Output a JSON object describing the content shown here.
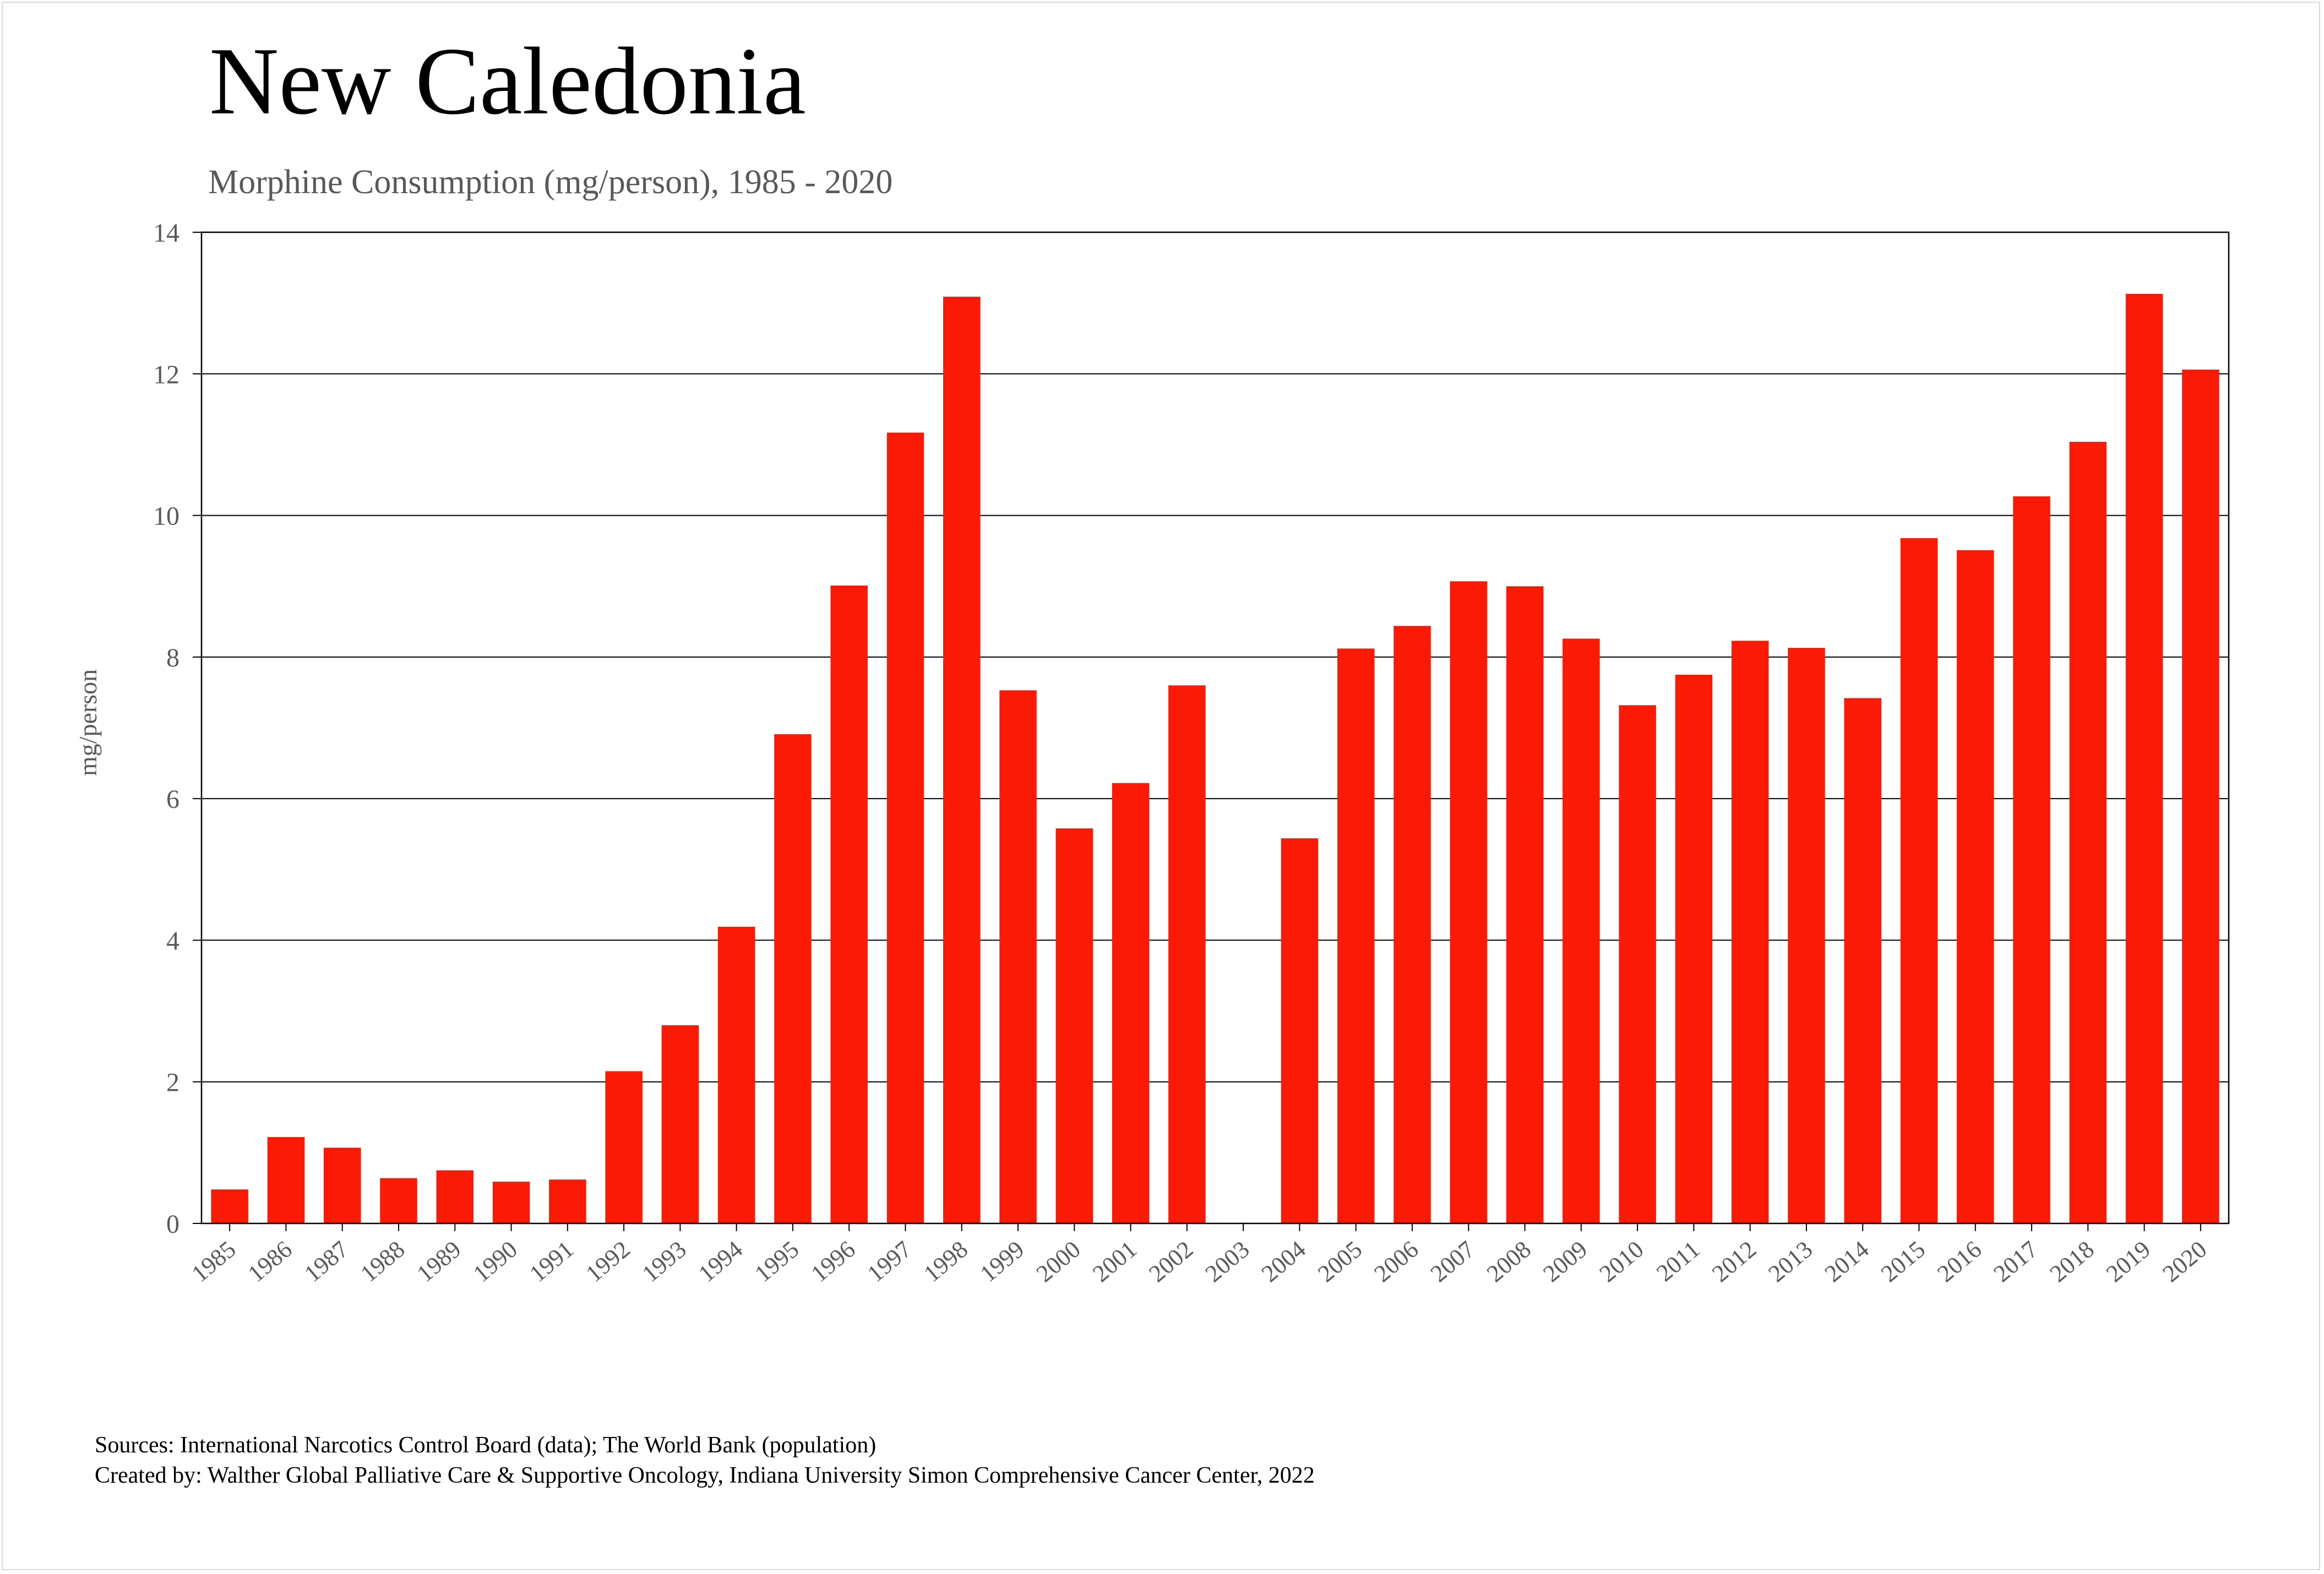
{
  "colors": {
    "bar": "#fa1a06",
    "grid": "#000000",
    "tick_text": "#595959"
  },
  "chart_data": {
    "type": "bar",
    "title": "New Caledonia",
    "subtitle": "Morphine Consumption (mg/person), 1985 - 2020",
    "xlabel": "",
    "ylabel": "mg/person",
    "ylim": [
      0,
      14
    ],
    "yticks": [
      0,
      2,
      4,
      6,
      8,
      10,
      12,
      14
    ],
    "grid": true,
    "categories": [
      "1985",
      "1986",
      "1987",
      "1988",
      "1989",
      "1990",
      "1991",
      "1992",
      "1993",
      "1994",
      "1995",
      "1996",
      "1997",
      "1998",
      "1999",
      "2000",
      "2001",
      "2002",
      "2003",
      "2004",
      "2005",
      "2006",
      "2007",
      "2008",
      "2009",
      "2010",
      "2011",
      "2012",
      "2013",
      "2014",
      "2015",
      "2016",
      "2017",
      "2018",
      "2019",
      "2020"
    ],
    "values": [
      0.48,
      1.22,
      1.07,
      0.64,
      0.75,
      0.59,
      0.62,
      2.15,
      2.8,
      4.19,
      6.91,
      9.01,
      11.17,
      13.09,
      7.53,
      5.58,
      6.22,
      7.6,
      null,
      5.44,
      8.12,
      8.44,
      9.07,
      9.0,
      8.26,
      7.32,
      7.75,
      8.23,
      8.13,
      7.42,
      9.68,
      9.51,
      10.27,
      11.04,
      13.13,
      12.06
    ]
  },
  "footer": {
    "sources": "Sources: International Narcotics Control Board (data); The World Bank (population)",
    "created": "Created by: Walther  Global Palliative Care & Supportive Oncology, Indiana University Simon Comprehensive Cancer Center, 2022"
  }
}
